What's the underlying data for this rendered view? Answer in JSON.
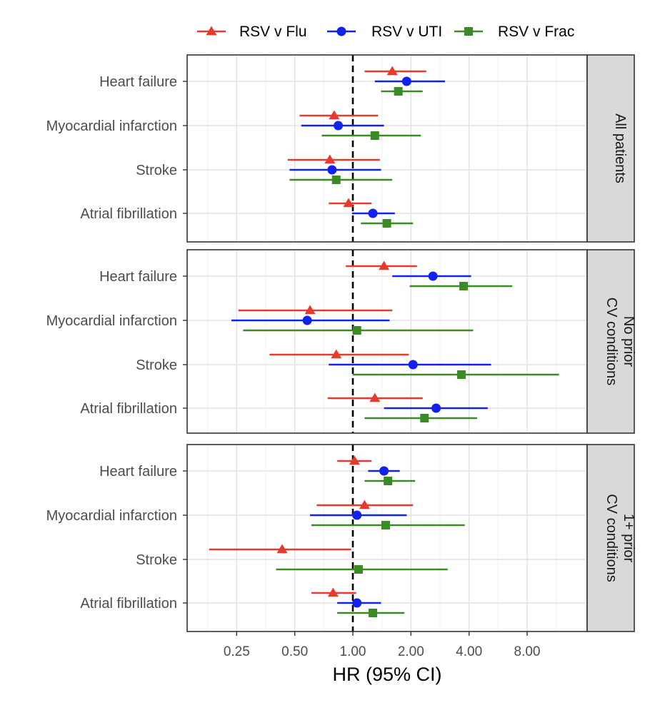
{
  "chart_data": {
    "type": "forest",
    "xlabel": "HR (95% CI)",
    "xscale": "log2",
    "xlim": [
      0.125,
      16
    ],
    "xticks": [
      0.25,
      0.5,
      1,
      2,
      4,
      8
    ],
    "xtick_labels": [
      "0.25",
      "0.50",
      "1.00",
      "2.00",
      "4.00",
      "8.00"
    ],
    "reference_line": 1,
    "outcomes": [
      "Heart failure",
      "Myocardial infarction",
      "Stroke",
      "Atrial fibrillation"
    ],
    "series": [
      {
        "name": "RSV v Flu",
        "color": "#e8392e",
        "marker": "triangle"
      },
      {
        "name": "RSV v UTI",
        "color": "#1122ee",
        "marker": "circle"
      },
      {
        "name": "RSV v Frac",
        "color": "#3a8a26",
        "marker": "square"
      }
    ],
    "panels": [
      {
        "strip_lines": [
          "All patients"
        ],
        "rows": [
          {
            "outcome": "Heart failure",
            "series": "RSV v Flu",
            "hr": 1.6,
            "lo": 1.15,
            "hi": 2.4
          },
          {
            "outcome": "Heart failure",
            "series": "RSV v UTI",
            "hr": 1.9,
            "lo": 1.3,
            "hi": 3.0
          },
          {
            "outcome": "Heart failure",
            "series": "RSV v Frac",
            "hr": 1.72,
            "lo": 1.4,
            "hi": 2.3
          },
          {
            "outcome": "Myocardial infarction",
            "series": "RSV v Flu",
            "hr": 0.8,
            "lo": 0.53,
            "hi": 1.35
          },
          {
            "outcome": "Myocardial infarction",
            "series": "RSV v UTI",
            "hr": 0.84,
            "lo": 0.54,
            "hi": 1.45
          },
          {
            "outcome": "Myocardial infarction",
            "series": "RSV v Frac",
            "hr": 1.3,
            "lo": 0.69,
            "hi": 2.25
          },
          {
            "outcome": "Stroke",
            "series": "RSV v Flu",
            "hr": 0.76,
            "lo": 0.46,
            "hi": 1.38
          },
          {
            "outcome": "Stroke",
            "series": "RSV v UTI",
            "hr": 0.78,
            "lo": 0.47,
            "hi": 1.4
          },
          {
            "outcome": "Stroke",
            "series": "RSV v Frac",
            "hr": 0.82,
            "lo": 0.47,
            "hi": 1.6
          },
          {
            "outcome": "Atrial fibrillation",
            "series": "RSV v Flu",
            "hr": 0.95,
            "lo": 0.75,
            "hi": 1.25
          },
          {
            "outcome": "Atrial fibrillation",
            "series": "RSV v UTI",
            "hr": 1.27,
            "lo": 0.99,
            "hi": 1.65
          },
          {
            "outcome": "Atrial fibrillation",
            "series": "RSV v Frac",
            "hr": 1.5,
            "lo": 1.1,
            "hi": 2.05
          }
        ]
      },
      {
        "strip_lines": [
          "No prior",
          "CV conditions"
        ],
        "rows": [
          {
            "outcome": "Heart failure",
            "series": "RSV v Flu",
            "hr": 1.45,
            "lo": 0.92,
            "hi": 2.15
          },
          {
            "outcome": "Heart failure",
            "series": "RSV v UTI",
            "hr": 2.6,
            "lo": 1.6,
            "hi": 4.1
          },
          {
            "outcome": "Heart failure",
            "series": "RSV v Frac",
            "hr": 3.75,
            "lo": 1.97,
            "hi": 6.7
          },
          {
            "outcome": "Myocardial infarction",
            "series": "RSV v Flu",
            "hr": 0.6,
            "lo": 0.255,
            "hi": 1.6
          },
          {
            "outcome": "Myocardial infarction",
            "series": "RSV v UTI",
            "hr": 0.58,
            "lo": 0.235,
            "hi": 1.55
          },
          {
            "outcome": "Myocardial infarction",
            "series": "RSV v Frac",
            "hr": 1.05,
            "lo": 0.27,
            "hi": 4.2
          },
          {
            "outcome": "Stroke",
            "series": "RSV v Flu",
            "hr": 0.82,
            "lo": 0.37,
            "hi": 1.95
          },
          {
            "outcome": "Stroke",
            "series": "RSV v UTI",
            "hr": 2.05,
            "lo": 0.75,
            "hi": 5.2
          },
          {
            "outcome": "Stroke",
            "series": "RSV v Frac",
            "hr": 3.65,
            "lo": 1.0,
            "hi": 11.7
          },
          {
            "outcome": "Atrial fibrillation",
            "series": "RSV v Flu",
            "hr": 1.3,
            "lo": 0.74,
            "hi": 2.3
          },
          {
            "outcome": "Atrial fibrillation",
            "series": "RSV v UTI",
            "hr": 2.7,
            "lo": 1.45,
            "hi": 5.0
          },
          {
            "outcome": "Atrial fibrillation",
            "series": "RSV v Frac",
            "hr": 2.35,
            "lo": 1.15,
            "hi": 4.4
          }
        ]
      },
      {
        "strip_lines": [
          "1+ prior",
          "CV conditions"
        ],
        "rows": [
          {
            "outcome": "Heart failure",
            "series": "RSV v Flu",
            "hr": 1.02,
            "lo": 0.83,
            "hi": 1.25
          },
          {
            "outcome": "Heart failure",
            "series": "RSV v UTI",
            "hr": 1.45,
            "lo": 1.2,
            "hi": 1.75
          },
          {
            "outcome": "Heart failure",
            "series": "RSV v Frac",
            "hr": 1.52,
            "lo": 1.15,
            "hi": 2.1
          },
          {
            "outcome": "Myocardial infarction",
            "series": "RSV v Flu",
            "hr": 1.15,
            "lo": 0.65,
            "hi": 2.05
          },
          {
            "outcome": "Myocardial infarction",
            "series": "RSV v UTI",
            "hr": 1.05,
            "lo": 0.6,
            "hi": 1.9
          },
          {
            "outcome": "Myocardial infarction",
            "series": "RSV v Frac",
            "hr": 1.48,
            "lo": 0.61,
            "hi": 3.8
          },
          {
            "outcome": "Stroke",
            "series": "RSV v Flu",
            "hr": 0.43,
            "lo": 0.18,
            "hi": 0.98
          },
          {
            "outcome": "Stroke",
            "series": "RSV v Frac",
            "hr": 1.07,
            "lo": 0.4,
            "hi": 3.1
          },
          {
            "outcome": "Atrial fibrillation",
            "series": "RSV v Flu",
            "hr": 0.79,
            "lo": 0.61,
            "hi": 1.04
          },
          {
            "outcome": "Atrial fibrillation",
            "series": "RSV v UTI",
            "hr": 1.05,
            "lo": 0.83,
            "hi": 1.4
          },
          {
            "outcome": "Atrial fibrillation",
            "series": "RSV v Frac",
            "hr": 1.27,
            "lo": 0.83,
            "hi": 1.85
          }
        ]
      }
    ]
  }
}
